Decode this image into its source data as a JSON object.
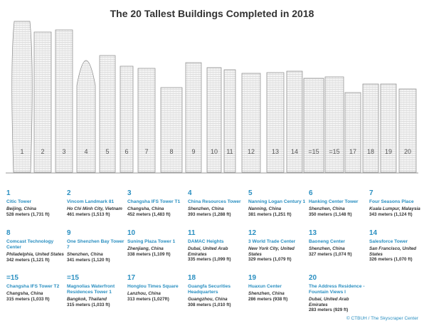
{
  "header": {
    "title": "The 20 Tallest Buildings Completed in 2018"
  },
  "entries": [
    {
      "rank": "1",
      "name": "Citic Tower",
      "location": "Beijing, China",
      "height": "528 meters (1,731 ft)"
    },
    {
      "rank": "2",
      "name": "Vincom Landmark 81",
      "location": "Ho Chi Minh City, Vietnam",
      "height": "461 meters (1,513 ft)"
    },
    {
      "rank": "3",
      "name": "Changsha IFS Tower T1",
      "location": "Changsha, China",
      "height": "452 meters (1,483 ft)"
    },
    {
      "rank": "4",
      "name": "China Resources Tower",
      "location": "Shenzhen, China",
      "height": "393 meters (1,288 ft)"
    },
    {
      "rank": "5",
      "name": "Nanning Logan Century 1",
      "location": "Nanning, China",
      "height": "381 meters (1,251 ft)"
    },
    {
      "rank": "6",
      "name": "Hanking Center Tower",
      "location": "Shenzhen, China",
      "height": "350 meters (1,148 ft)"
    },
    {
      "rank": "7",
      "name": "Four Seasons Place",
      "location": "Kuala Lumpur, Malaysia",
      "height": "343 meters (1,124 ft)"
    },
    {
      "rank": "8",
      "name": "Comcast Technology Center",
      "location": "Philadelphia, United States",
      "height": "342 meters (1,121 ft)"
    },
    {
      "rank": "9",
      "name": "One Shenzhen Bay Tower 7",
      "location": "Shenzhen, China",
      "height": "341 meters (1,120 ft)"
    },
    {
      "rank": "10",
      "name": "Suning Plaza Tower 1",
      "location": "Zhenjiang, China",
      "height": "338 meters (1,109 ft)"
    },
    {
      "rank": "11",
      "name": "DAMAC Heights",
      "location": "Dubai, United Arab Emirates",
      "height": "335 meters (1,099 ft)"
    },
    {
      "rank": "12",
      "name": "3 World Trade Center",
      "location": "New York City, United States",
      "height": "329 meters (1,079 ft)"
    },
    {
      "rank": "13",
      "name": "Baoneng Center",
      "location": "Shenzhen, China",
      "height": "327 meters (1,074 ft)"
    },
    {
      "rank": "14",
      "name": "Salesforce Tower",
      "location": "San Francisco, United States",
      "height": "326 meters (1,070 ft)"
    },
    {
      "rank": "=15",
      "name": "Changsha IFS Tower T2",
      "location": "Changsha, China",
      "height": "315 meters (1,033 ft)"
    },
    {
      "rank": "=15",
      "name": "Magnolias Waterfront Residences Tower 1",
      "location": "Bangkok, Thailand",
      "height": "315 meters (1,033 ft)"
    },
    {
      "rank": "17",
      "name": "Honglou Times Square",
      "location": "Lanzhou, China",
      "height": "313 meters (1,027ft)"
    },
    {
      "rank": "18",
      "name": "Guangfa Securities Headquarters",
      "location": "Guangzhou, China",
      "height": "308 meters (1,010 ft)"
    },
    {
      "rank": "19",
      "name": "Huaxun Center",
      "location": "Shenzhen, China",
      "height": "286 meters (938 ft)"
    },
    {
      "rank": "20",
      "name": "The Address Residence - Fountain Views I",
      "location": "Dubai, United Arab Emirates",
      "height": "283 meters (929 ft)"
    }
  ],
  "footer": {
    "credit": "© CTBUH / The Skyscraper Center"
  }
}
